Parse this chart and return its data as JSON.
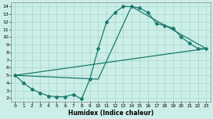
{
  "title": "",
  "xlabel": "Humidex (Indice chaleur)",
  "background_color": "#cceee8",
  "grid_color": "#aaddcc",
  "line_color": "#1a7a6e",
  "xlim": [
    -0.5,
    23.5
  ],
  "ylim": [
    1.5,
    14.5
  ],
  "xticks": [
    0,
    1,
    2,
    3,
    4,
    5,
    6,
    7,
    8,
    9,
    10,
    11,
    12,
    13,
    14,
    15,
    16,
    17,
    18,
    19,
    20,
    21,
    22,
    23
  ],
  "yticks": [
    2,
    3,
    4,
    5,
    6,
    7,
    8,
    9,
    10,
    11,
    12,
    13,
    14
  ],
  "curve1_x": [
    0,
    1,
    2,
    3,
    4,
    5,
    6,
    7,
    8,
    9,
    10,
    11,
    12,
    13,
    14,
    15,
    16,
    17,
    18,
    19,
    20,
    21,
    22,
    23
  ],
  "curve1_y": [
    5.0,
    4.0,
    3.2,
    2.7,
    2.3,
    2.2,
    2.2,
    2.5,
    1.9,
    4.5,
    8.5,
    12.0,
    13.2,
    14.0,
    14.0,
    13.8,
    13.2,
    11.8,
    11.5,
    11.2,
    10.0,
    9.2,
    8.5,
    8.5
  ],
  "curve2_x": [
    0,
    23
  ],
  "curve2_y": [
    5.0,
    8.5
  ],
  "curve3_x": [
    0,
    10,
    14,
    23
  ],
  "curve3_y": [
    5.0,
    4.5,
    14.0,
    8.5
  ],
  "markersize": 2.0,
  "linewidth": 0.9
}
